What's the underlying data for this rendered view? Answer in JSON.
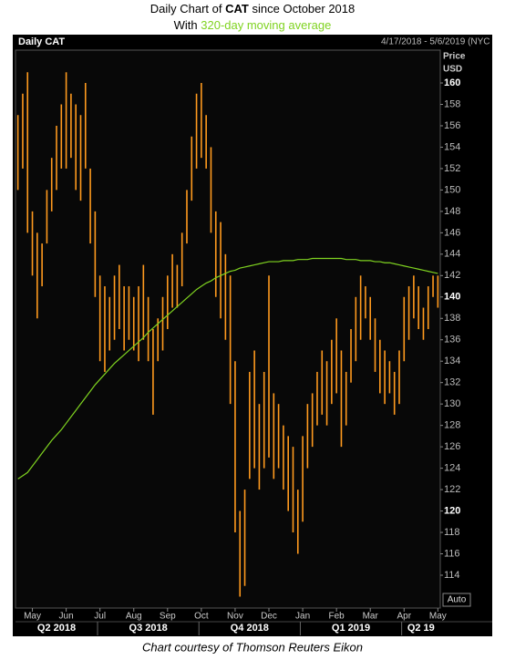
{
  "chart_data": {
    "type": "hilo",
    "title": [
      "Daily Chart of",
      "CAT",
      "since October 2018"
    ],
    "subtitle_prefix": "With",
    "panel_title": "Daily CAT",
    "date_range": "4/17/2018 - 5/6/2019 (NYC",
    "y_axis_label": [
      "Price",
      "USD"
    ],
    "scale_button": "Auto",
    "footer": "Chart courtesy of Thomson Reuters Eikon",
    "categories": [
      null,
      null,
      null,
      "May",
      null,
      null,
      null,
      null,
      null,
      null,
      "Jun",
      null,
      null,
      null,
      null,
      null,
      null,
      "Jul",
      null,
      null,
      null,
      null,
      null,
      null,
      "Aug",
      null,
      null,
      null,
      null,
      null,
      null,
      "Sep",
      null,
      null,
      null,
      null,
      null,
      null,
      "Oct",
      null,
      null,
      null,
      null,
      null,
      null,
      "Nov",
      null,
      null,
      null,
      null,
      null,
      null,
      "Dec",
      null,
      null,
      null,
      null,
      null,
      null,
      "Jan",
      null,
      null,
      null,
      null,
      null,
      null,
      "Feb",
      null,
      null,
      null,
      null,
      null,
      null,
      "Mar",
      null,
      null,
      null,
      null,
      null,
      null,
      "Apr",
      null,
      null,
      null,
      null,
      null,
      null,
      "May"
    ],
    "quarters": [
      "Q2 2018",
      "Q3 2018",
      "Q4 2018",
      "Q1 2019",
      "Q2 19"
    ],
    "series": [
      {
        "name": "CAT",
        "color": "#ff9a1e",
        "high": [
          157,
          159,
          161,
          148,
          146,
          145,
          150,
          153,
          156,
          158,
          161,
          159,
          158,
          157,
          160,
          152,
          148,
          142,
          141,
          140,
          142,
          143,
          141,
          141,
          140,
          141,
          143,
          140,
          137,
          138,
          140,
          142,
          144,
          143,
          146,
          150,
          155,
          159,
          160,
          157,
          154,
          148,
          147,
          144,
          142,
          134,
          120,
          122,
          133,
          135,
          130,
          133,
          142,
          131,
          130,
          128,
          127,
          126,
          122,
          127,
          130,
          131,
          133,
          135,
          134,
          136,
          138,
          135,
          133,
          137,
          140,
          142,
          141,
          140,
          138,
          136,
          135,
          134,
          133,
          135,
          140,
          141,
          142,
          141,
          139,
          141,
          142,
          142
        ],
        "low": [
          150,
          152,
          146,
          142,
          138,
          141,
          145,
          148,
          150,
          152,
          152,
          153,
          150,
          149,
          152,
          145,
          140,
          134,
          133,
          135,
          136,
          137,
          135,
          136,
          135,
          134,
          136,
          134,
          129,
          134,
          135,
          137,
          139,
          139,
          141,
          145,
          149,
          152,
          153,
          152,
          146,
          140,
          138,
          136,
          130,
          118,
          112,
          113,
          123,
          124,
          122,
          124,
          125,
          123,
          124,
          122,
          120,
          118,
          116,
          119,
          124,
          126,
          128,
          129,
          128,
          130,
          131,
          126,
          128,
          132,
          134,
          136,
          138,
          136,
          133,
          131,
          130,
          131,
          129,
          130,
          134,
          136,
          138,
          137,
          136,
          137,
          140,
          139
        ]
      },
      {
        "name": "320-day moving average",
        "color": "#7fd320",
        "values": [
          123.0,
          123.3,
          123.6,
          124.2,
          124.8,
          125.4,
          126.0,
          126.6,
          127.1,
          127.6,
          128.2,
          128.8,
          129.4,
          130.0,
          130.6,
          131.2,
          131.8,
          132.3,
          132.8,
          133.3,
          133.8,
          134.2,
          134.6,
          135.0,
          135.4,
          135.8,
          136.2,
          136.7,
          137.1,
          137.5,
          137.9,
          138.3,
          138.7,
          139.1,
          139.5,
          139.9,
          140.3,
          140.7,
          141.0,
          141.3,
          141.5,
          141.8,
          142.0,
          142.2,
          142.4,
          142.5,
          142.7,
          142.8,
          142.9,
          143.0,
          143.1,
          143.2,
          143.3,
          143.3,
          143.3,
          143.4,
          143.4,
          143.4,
          143.5,
          143.5,
          143.5,
          143.6,
          143.6,
          143.6,
          143.6,
          143.6,
          143.6,
          143.6,
          143.5,
          143.5,
          143.5,
          143.4,
          143.4,
          143.4,
          143.3,
          143.3,
          143.2,
          143.2,
          143.1,
          143.0,
          142.9,
          142.8,
          142.7,
          142.6,
          142.5,
          142.4,
          142.3,
          142.2
        ]
      }
    ],
    "ylim": [
      111,
      163
    ],
    "yticks": [
      114,
      116,
      118,
      120,
      122,
      124,
      126,
      128,
      130,
      132,
      134,
      136,
      138,
      140,
      142,
      144,
      146,
      148,
      150,
      152,
      154,
      156,
      158,
      160
    ],
    "grid": false
  }
}
